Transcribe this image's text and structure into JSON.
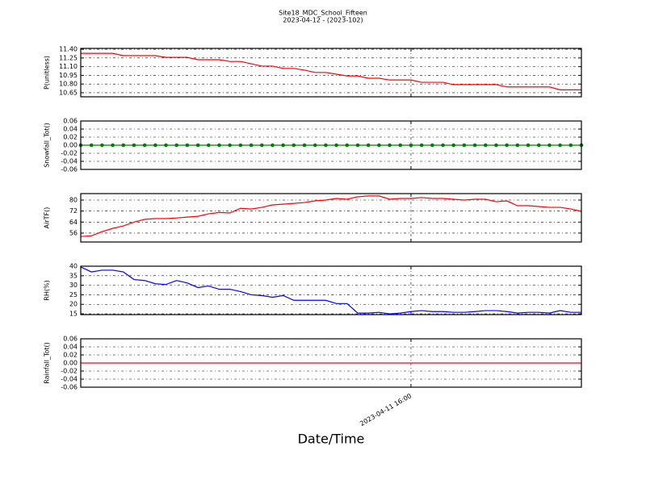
{
  "figure": {
    "title": "Site18_MDC_School_Fifteen",
    "subtitle": "2023-04-12 - (2023-102)",
    "xlabel": "Date/Time",
    "x": [
      "2023-04-10 09:00",
      "2023-04-10 10:00",
      "2023-04-10 11:00",
      "2023-04-10 12:00",
      "2023-04-10 13:00",
      "2023-04-10 14:00",
      "2023-04-10 15:00",
      "2023-04-10 16:00",
      "2023-04-10 17:00",
      "2023-04-10 18:00",
      "2023-04-10 19:00",
      "2023-04-10 20:00",
      "2023-04-10 21:00",
      "2023-04-10 22:00",
      "2023-04-10 23:00",
      "2023-04-11 00:00",
      "2023-04-11 01:00",
      "2023-04-11 02:00",
      "2023-04-11 03:00",
      "2023-04-11 04:00",
      "2023-04-11 05:00",
      "2023-04-11 06:00",
      "2023-04-11 07:00",
      "2023-04-11 08:00",
      "2023-04-11 09:00",
      "2023-04-11 10:00",
      "2023-04-11 11:00",
      "2023-04-11 12:00",
      "2023-04-11 13:00",
      "2023-04-11 14:00",
      "2023-04-11 15:00",
      "2023-04-11 16:00",
      "2023-04-11 17:00",
      "2023-04-11 18:00",
      "2023-04-11 19:00",
      "2023-04-11 20:00",
      "2023-04-11 21:00",
      "2023-04-11 22:00",
      "2023-04-11 23:00",
      "2023-04-12 00:00",
      "2023-04-12 01:00",
      "2023-04-12 02:00",
      "2023-04-12 03:00",
      "2023-04-12 04:00",
      "2023-04-12 05:00",
      "2023-04-12 06:00",
      "2023-04-12 07:00",
      "2023-04-12 08:00"
    ],
    "xlim": [
      "2023-04-10 09:00",
      "2023-04-12 08:00"
    ],
    "xticks": [
      "2023-04-11 16:00"
    ]
  },
  "chart_data": [
    {
      "type": "line",
      "ylabel": "P(unitless)",
      "color": "#ff0000",
      "grid": true,
      "ylim": [
        10.58,
        11.415
      ],
      "yticks": [
        {
          "value": 10.65,
          "label": "10.65"
        },
        {
          "value": 10.8,
          "label": "10.80"
        },
        {
          "value": 10.95,
          "label": "10.95"
        },
        {
          "value": 11.1,
          "label": "11.10"
        },
        {
          "value": 11.25,
          "label": "11.25"
        },
        {
          "value": 11.4,
          "label": "11.40"
        }
      ],
      "values": [
        11.33,
        11.33,
        11.33,
        11.33,
        11.29,
        11.29,
        11.29,
        11.29,
        11.26,
        11.26,
        11.26,
        11.22,
        11.22,
        11.22,
        11.19,
        11.19,
        11.15,
        11.11,
        11.11,
        11.07,
        11.07,
        11.04,
        11.0,
        11.0,
        10.97,
        10.94,
        10.94,
        10.9,
        10.9,
        10.87,
        10.87,
        10.87,
        10.83,
        10.83,
        10.83,
        10.79,
        10.79,
        10.79,
        10.79,
        10.79,
        10.75,
        10.75,
        10.75,
        10.75,
        10.75,
        10.7,
        10.7,
        10.7
      ]
    },
    {
      "type": "line",
      "ylabel": "Snowfall_Tot()",
      "color": "#008000",
      "marker": "circle",
      "grid": true,
      "ylim": [
        -0.06,
        0.06
      ],
      "yticks": [
        -0.06,
        -0.04,
        -0.02,
        {
          "value": 0,
          "label": "0.00"
        },
        0.02,
        0.04,
        0.06
      ],
      "values": [
        0,
        0,
        0,
        0,
        0,
        0,
        0,
        0,
        0,
        0,
        0,
        0,
        0,
        0,
        0,
        0,
        0,
        0,
        0,
        0,
        0,
        0,
        0,
        0,
        0,
        0,
        0,
        0,
        0,
        0,
        0,
        0,
        0,
        0,
        0,
        0,
        0,
        0,
        0,
        0,
        0,
        0,
        0,
        0,
        0,
        0,
        0,
        0
      ]
    },
    {
      "type": "line",
      "ylabel": "AirTF()",
      "color": "#ff0000",
      "grid": true,
      "ylim": [
        49.5,
        84.7
      ],
      "yticks": [
        56,
        64,
        72,
        80
      ],
      "values": [
        53.5,
        54,
        57,
        59.4,
        61.2,
        64,
        66,
        66.5,
        66.5,
        67,
        67.6,
        68.2,
        70,
        71,
        70.6,
        74,
        73.5,
        74.7,
        76.5,
        77,
        77.6,
        78.2,
        79.4,
        80,
        81.2,
        80.6,
        82.4,
        83,
        83,
        80.6,
        81.2,
        81.2,
        81.8,
        81.2,
        81.2,
        80.6,
        80,
        80.6,
        80.6,
        78.8,
        79.4,
        75.9,
        75.9,
        75.3,
        74.7,
        74.7,
        73.5,
        71.8
      ]
    },
    {
      "type": "line",
      "ylabel": "RH(%)",
      "color": "#0000ff",
      "grid": true,
      "ylim": [
        14.6,
        40
      ],
      "yticks": [
        15,
        20,
        25,
        30,
        35,
        40
      ],
      "values": [
        39.6,
        37,
        37.9,
        37.9,
        37,
        33,
        32.5,
        30.8,
        30.4,
        32.5,
        31.2,
        28.8,
        29.6,
        27.9,
        27.9,
        26.7,
        25,
        24.6,
        23.7,
        24.6,
        22.1,
        22.1,
        22.1,
        22.1,
        20.4,
        20.4,
        15.4,
        15.4,
        15.8,
        15,
        15.4,
        16.2,
        16.7,
        16.2,
        16.2,
        15.8,
        15.8,
        16.2,
        16.7,
        16.7,
        16.2,
        15.4,
        15.8,
        15.8,
        15.4,
        16.7,
        15.8,
        15.8
      ]
    },
    {
      "type": "line",
      "ylabel": "Rainfall_Tot()",
      "color": "#ff0000",
      "grid": true,
      "ylim": [
        -0.06,
        0.06
      ],
      "yticks": [
        -0.06,
        -0.04,
        -0.02,
        {
          "value": 0,
          "label": "0.00"
        },
        0.02,
        0.04,
        0.06
      ],
      "values": [
        0,
        0,
        0,
        0,
        0,
        0,
        0,
        0,
        0,
        0,
        0,
        0,
        0,
        0,
        0,
        0,
        0,
        0,
        0,
        0,
        0,
        0,
        0,
        0,
        0,
        0,
        0,
        0,
        0,
        0,
        0,
        0,
        0,
        0,
        0,
        0,
        0,
        0,
        0,
        0,
        0,
        0,
        0,
        0,
        0,
        0,
        0,
        0
      ]
    }
  ]
}
